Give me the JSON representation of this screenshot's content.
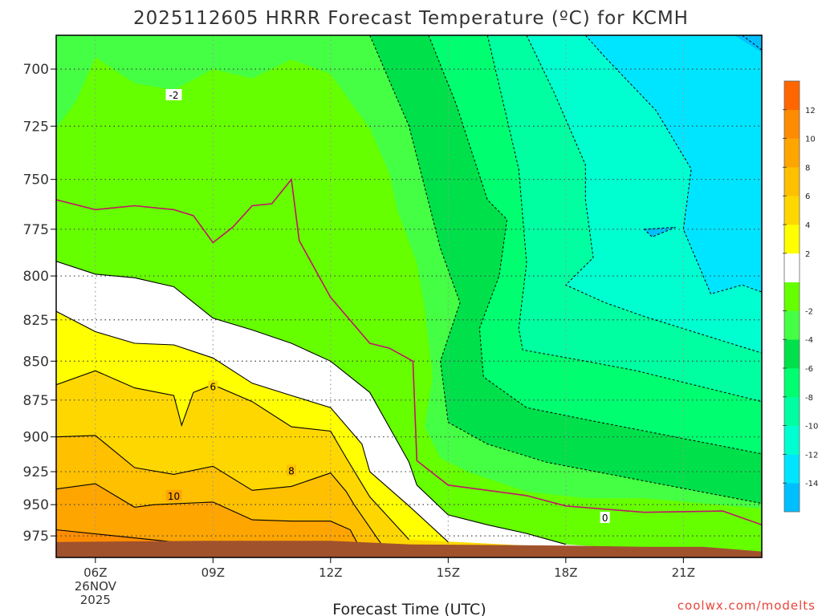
{
  "title": "2025112605 HRRR Forecast Temperature (ºC) for KCMH",
  "x_axis_label": "Forecast Time (UTC)",
  "credit": "coolwx.com/modelts",
  "colors": {
    "ground": "#a0522d",
    "zero_line": "#c0166a",
    "bands": [
      "#00bfff",
      "#00e5ff",
      "#00ffd0",
      "#00ffa0",
      "#00ff70",
      "#00e04a",
      "#44ff44",
      "#66ff00",
      "#ffffff",
      "#ffff00",
      "#ffd700",
      "#ffc000",
      "#ffa500",
      "#ff8c00",
      "#ff6600"
    ]
  },
  "chart_data": {
    "type": "heatmap",
    "title": "2025112605 HRRR Forecast Temperature (ºC) for KCMH",
    "xlabel": "Forecast Time (UTC)",
    "ylabel": "",
    "x_ticks": [
      "06Z",
      "09Z",
      "12Z",
      "15Z",
      "18Z",
      "21Z"
    ],
    "x_date_label": [
      "26NOV",
      "2025"
    ],
    "x_range_hours": [
      5,
      23
    ],
    "y_ticks": [
      700,
      725,
      750,
      775,
      800,
      825,
      850,
      875,
      900,
      925,
      950,
      975
    ],
    "y_range_hPa": [
      686,
      993
    ],
    "y_scale": "reciprocal pressure, inverted (700 at top)",
    "grid": true,
    "colorbar": {
      "placement": "right",
      "ticks": [
        12,
        10,
        8,
        6,
        4,
        2,
        -2,
        -4,
        -6,
        -8,
        -10,
        -12,
        -14
      ],
      "band_edges": [
        -16,
        -14,
        -12,
        -10,
        -8,
        -6,
        -4,
        -2,
        0,
        2,
        4,
        6,
        8,
        10,
        12,
        14
      ]
    },
    "contour_labels": [
      {
        "text": "-2",
        "x_hour": 8.0,
        "p": 711
      },
      {
        "text": "6",
        "x_hour": 9.0,
        "p": 866
      },
      {
        "text": "8",
        "x_hour": 11.0,
        "p": 924
      },
      {
        "text": "10",
        "x_hour": 8.0,
        "p": 943
      },
      {
        "text": "0",
        "x_hour": 19.0,
        "p": 960
      }
    ],
    "isotherms": [
      {
        "level": -14,
        "points": [
          [
            22.5,
            686
          ],
          [
            23,
            692
          ]
        ]
      },
      {
        "level": -14,
        "points": [
          [
            20,
            775
          ],
          [
            20.8,
            774
          ],
          [
            20.2,
            779
          ],
          [
            20,
            775
          ]
        ]
      },
      {
        "level": -12,
        "points": [
          [
            18.5,
            686
          ],
          [
            19,
            695
          ],
          [
            20.3,
            718
          ],
          [
            21.2,
            745
          ],
          [
            21,
            775
          ],
          [
            21.7,
            810
          ],
          [
            22.5,
            805
          ],
          [
            23,
            809
          ]
        ]
      },
      {
        "level": -10,
        "points": [
          [
            17,
            686
          ],
          [
            17.7,
            710
          ],
          [
            18.5,
            743
          ],
          [
            18.5,
            760
          ],
          [
            18.7,
            790
          ],
          [
            18.0,
            805
          ],
          [
            19.0,
            815
          ],
          [
            20.0,
            823
          ],
          [
            23,
            845
          ]
        ]
      },
      {
        "level": -8,
        "points": [
          [
            16,
            686
          ],
          [
            16.8,
            745
          ],
          [
            17,
            793
          ],
          [
            16.8,
            830
          ],
          [
            16.9,
            843
          ],
          [
            18.5,
            850
          ],
          [
            19.8,
            856
          ],
          [
            23,
            876
          ]
        ]
      },
      {
        "level": -6,
        "points": [
          [
            14.5,
            686
          ],
          [
            15.2,
            715
          ],
          [
            16,
            760
          ],
          [
            16.5,
            770
          ],
          [
            16.3,
            800
          ],
          [
            15.8,
            830
          ],
          [
            15.9,
            860
          ],
          [
            17,
            880
          ],
          [
            18.5,
            888
          ],
          [
            23,
            912
          ]
        ]
      },
      {
        "level": -4,
        "points": [
          [
            13,
            686
          ],
          [
            14,
            725
          ],
          [
            14.8,
            785
          ],
          [
            15.3,
            815
          ],
          [
            14.8,
            850
          ],
          [
            15.0,
            890
          ],
          [
            16,
            905
          ],
          [
            17.5,
            918
          ],
          [
            23,
            949
          ]
        ]
      },
      {
        "level": 0,
        "points": [
          [
            5,
            760
          ],
          [
            6,
            765
          ],
          [
            7,
            763
          ],
          [
            8,
            765
          ],
          [
            8.5,
            768
          ],
          [
            9,
            782
          ],
          [
            9.5,
            774
          ],
          [
            10,
            763
          ],
          [
            10.5,
            762
          ],
          [
            11,
            750
          ],
          [
            11.2,
            781
          ],
          [
            12,
            812
          ],
          [
            13,
            839
          ],
          [
            13.5,
            842
          ],
          [
            14.1,
            850
          ],
          [
            14.2,
            917
          ],
          [
            15,
            935
          ],
          [
            17,
            943
          ],
          [
            18,
            951
          ],
          [
            20,
            956
          ],
          [
            22,
            955
          ],
          [
            23,
            966
          ]
        ]
      },
      {
        "level": 2,
        "points": [
          [
            5,
            792
          ],
          [
            6,
            799
          ],
          [
            7,
            801
          ],
          [
            8,
            806
          ],
          [
            9,
            824
          ],
          [
            10,
            831
          ],
          [
            11,
            839
          ],
          [
            12,
            850
          ],
          [
            13,
            870
          ],
          [
            14,
            918
          ],
          [
            14.2,
            935
          ],
          [
            15,
            958
          ],
          [
            16,
            966
          ],
          [
            17,
            973
          ],
          [
            18,
            982
          ]
        ]
      },
      {
        "level": 4,
        "points": [
          [
            5,
            820
          ],
          [
            6,
            832
          ],
          [
            7,
            839
          ],
          [
            8,
            840
          ],
          [
            9,
            848
          ],
          [
            10,
            864
          ],
          [
            11,
            872
          ],
          [
            12,
            880
          ],
          [
            12.8,
            905
          ],
          [
            13,
            925
          ],
          [
            14,
            951
          ],
          [
            15,
            980
          ]
        ]
      },
      {
        "level": 6,
        "points": [
          [
            5,
            865
          ],
          [
            6,
            856
          ],
          [
            7,
            867
          ],
          [
            8,
            872
          ],
          [
            8.2,
            892
          ],
          [
            8.5,
            870
          ],
          [
            9,
            865
          ],
          [
            10,
            876
          ],
          [
            11,
            893
          ],
          [
            12,
            896
          ],
          [
            12.4,
            915
          ],
          [
            13,
            944
          ],
          [
            14,
            978
          ]
        ]
      },
      {
        "level": 8,
        "points": [
          [
            5,
            900
          ],
          [
            6,
            899
          ],
          [
            7,
            922
          ],
          [
            8,
            927
          ],
          [
            9,
            921
          ],
          [
            10,
            939
          ],
          [
            11,
            936
          ],
          [
            12,
            926
          ],
          [
            12.4,
            940
          ],
          [
            12.6,
            950
          ],
          [
            13.3,
            982
          ]
        ]
      },
      {
        "level": 10,
        "points": [
          [
            5,
            938
          ],
          [
            6,
            934
          ],
          [
            7,
            952
          ],
          [
            7.5,
            950
          ],
          [
            9,
            948
          ],
          [
            10,
            962
          ],
          [
            11,
            963
          ],
          [
            12,
            963
          ],
          [
            12.5,
            970
          ],
          [
            12.7,
            982
          ]
        ]
      },
      {
        "level": 12,
        "points": [
          [
            5,
            970
          ],
          [
            8,
            980
          ],
          [
            9,
            982
          ]
        ]
      }
    ],
    "ground_surface_hPa": [
      [
        5,
        980
      ],
      [
        9,
        979
      ],
      [
        12,
        979
      ],
      [
        14,
        982
      ],
      [
        18,
        983
      ],
      [
        20,
        984
      ],
      [
        21.5,
        984
      ],
      [
        23,
        988
      ]
    ]
  }
}
